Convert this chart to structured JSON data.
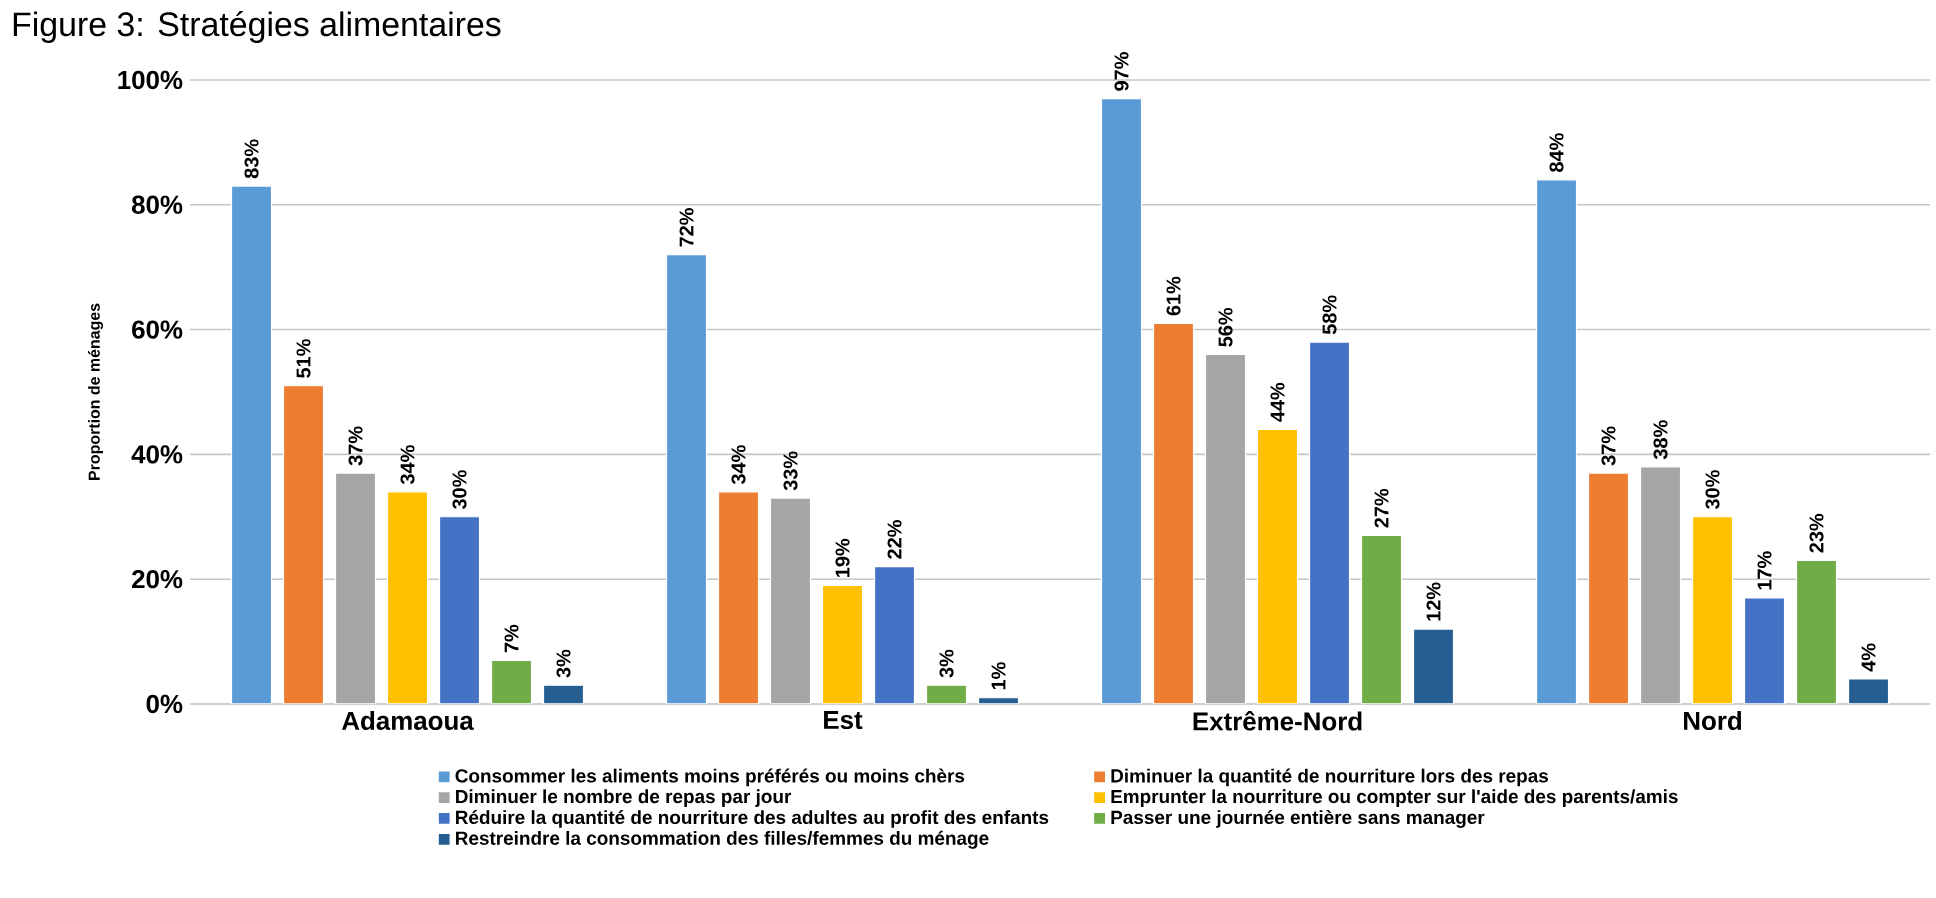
{
  "chart_data": {
    "type": "bar",
    "title": "Figure 3: Stratégies alimentaires",
    "ylabel": "Proportion de ménages",
    "categories": [
      "Adamaoua",
      "Est",
      "Extrême-Nord",
      "Nord"
    ],
    "series": [
      {
        "name": "Consommer les aliments moins préférés ou moins chèrs",
        "color": "#5b9bd5",
        "values": [
          83,
          72,
          97,
          84
        ],
        "value_labels": [
          "83%",
          "72%",
          "97%",
          "84%"
        ]
      },
      {
        "name": "Diminuer la quantité de nourriture lors des repas",
        "color": "#ed7d31",
        "values": [
          51,
          34,
          61,
          37
        ],
        "value_labels": [
          "51%",
          "34%",
          "61%",
          "37%"
        ]
      },
      {
        "name": "Diminuer le nombre de repas par jour",
        "color": "#a5a5a5",
        "values": [
          37,
          33,
          56,
          38
        ],
        "value_labels": [
          "37%",
          "33%",
          "56%",
          "38%"
        ]
      },
      {
        "name": "Emprunter la nourriture ou compter sur l'aide des parents/amis",
        "color": "#ffc000",
        "values": [
          34,
          19,
          44,
          30
        ],
        "value_labels": [
          "34%",
          "19%",
          "44%",
          "30%"
        ]
      },
      {
        "name": "Réduire la quantité de nourriture des adultes au profit des enfants",
        "color": "#4472c4",
        "values": [
          30,
          22,
          58,
          17
        ],
        "value_labels": [
          "30%",
          "22%",
          "58%",
          "17%"
        ]
      },
      {
        "name": "Passer une journée entière sans manager",
        "color": "#70ad47",
        "values": [
          7,
          3,
          27,
          23
        ],
        "value_labels": [
          "7%",
          "3%",
          "27%",
          "23%"
        ]
      },
      {
        "name": "Restreindre la consommation des filles/femmes du ménage",
        "color": "#255e91",
        "values": [
          3,
          1,
          12,
          4
        ],
        "value_labels": [
          "3%",
          "1%",
          "12%",
          "4%"
        ]
      }
    ],
    "ylim": [
      0,
      100
    ],
    "yticks": [
      {
        "value": 0,
        "label": "0%"
      },
      {
        "value": 20,
        "label": "20%"
      },
      {
        "value": 40,
        "label": "40%"
      },
      {
        "value": 60,
        "label": "60%"
      },
      {
        "value": 80,
        "label": "80%"
      },
      {
        "value": 100,
        "label": "100%"
      }
    ],
    "grid": "y",
    "legend": "bottom"
  }
}
